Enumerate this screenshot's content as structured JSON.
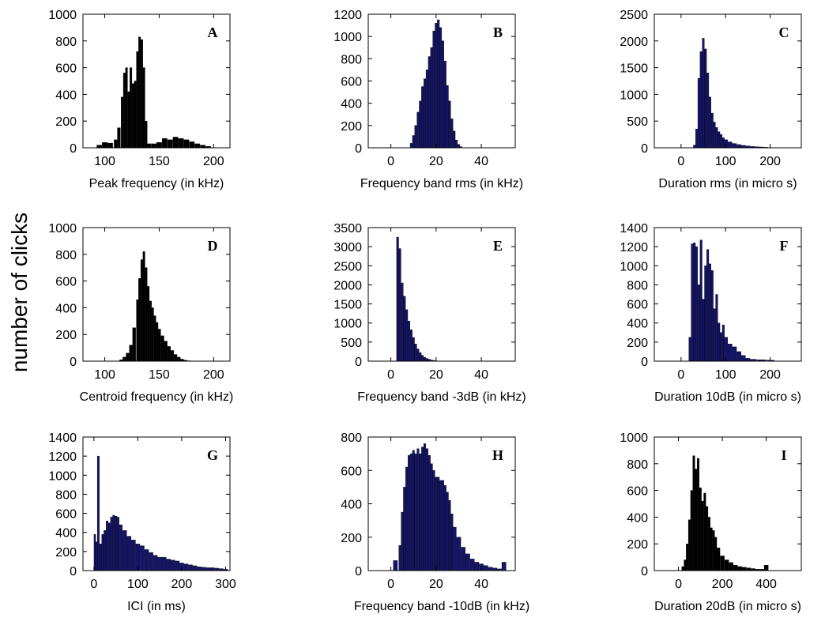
{
  "figure": {
    "ylabel": "number of clicks"
  },
  "colors": {
    "dark": "#000000",
    "navy": "#14146a",
    "axis": "#000000"
  },
  "chart_data": [
    {
      "type": "bar",
      "letter": "A",
      "xlabel": "Peak frequency (in kHz)",
      "ylabel": "",
      "xlim": [
        80,
        215
      ],
      "ylim": [
        0,
        1000
      ],
      "xticks": [
        100,
        150,
        200
      ],
      "yticks": [
        0,
        200,
        400,
        600,
        800,
        1000
      ],
      "color": "dark",
      "x": [
        95,
        100,
        105,
        110,
        113,
        116,
        118,
        120,
        122,
        124,
        126,
        128,
        130,
        132,
        134,
        136,
        138,
        140,
        145,
        150,
        155,
        160,
        165,
        170,
        175,
        180,
        185,
        190,
        195,
        200
      ],
      "values": [
        20,
        40,
        35,
        60,
        150,
        380,
        560,
        600,
        420,
        600,
        480,
        500,
        720,
        830,
        810,
        600,
        200,
        30,
        30,
        40,
        70,
        60,
        80,
        70,
        60,
        45,
        30,
        20,
        10,
        0
      ]
    },
    {
      "type": "bar",
      "letter": "B",
      "xlabel": "Frequency band rms (in kHz)",
      "ylabel": "",
      "xlim": [
        -10,
        55
      ],
      "ylim": [
        0,
        1200
      ],
      "xticks": [
        0,
        20,
        40
      ],
      "yticks": [
        0,
        200,
        400,
        600,
        800,
        1000,
        1200
      ],
      "color": "navy",
      "x": [
        9,
        10,
        11,
        12,
        13,
        14,
        15,
        16,
        17,
        18,
        19,
        20,
        21,
        22,
        23,
        24,
        25,
        26,
        27,
        28,
        29,
        30,
        31
      ],
      "values": [
        40,
        110,
        200,
        320,
        420,
        550,
        620,
        700,
        820,
        900,
        1050,
        1120,
        1150,
        1080,
        960,
        780,
        560,
        420,
        260,
        150,
        70,
        30,
        10
      ]
    },
    {
      "type": "bar",
      "letter": "C",
      "xlabel": "Duration rms (in micro s)",
      "ylabel": "",
      "xlim": [
        -60,
        270
      ],
      "ylim": [
        0,
        2500
      ],
      "xticks": [
        0,
        100,
        200
      ],
      "yticks": [
        0,
        500,
        1000,
        1500,
        2000,
        2500
      ],
      "color": "navy",
      "x": [
        30,
        35,
        40,
        45,
        50,
        55,
        60,
        65,
        70,
        75,
        80,
        85,
        90,
        95,
        100,
        110,
        120,
        130,
        140,
        150,
        160,
        170,
        180,
        190,
        200
      ],
      "values": [
        50,
        350,
        1300,
        1800,
        2050,
        1850,
        1400,
        950,
        650,
        480,
        380,
        300,
        250,
        190,
        150,
        110,
        80,
        60,
        45,
        35,
        25,
        20,
        15,
        10,
        5
      ]
    },
    {
      "type": "bar",
      "letter": "D",
      "xlabel": "Centroid frequency (in kHz)",
      "ylabel": "",
      "xlim": [
        80,
        215
      ],
      "ylim": [
        0,
        1000
      ],
      "xticks": [
        100,
        150,
        200
      ],
      "yticks": [
        0,
        200,
        400,
        600,
        800,
        1000
      ],
      "color": "dark",
      "x": [
        115,
        118,
        121,
        124,
        127,
        130,
        132,
        134,
        136,
        138,
        140,
        142,
        144,
        146,
        148,
        150,
        153,
        156,
        159,
        162,
        165,
        168,
        171,
        174,
        177
      ],
      "values": [
        10,
        30,
        60,
        120,
        250,
        460,
        620,
        760,
        820,
        700,
        560,
        450,
        400,
        340,
        290,
        240,
        190,
        150,
        110,
        80,
        50,
        30,
        15,
        8,
        3
      ]
    },
    {
      "type": "bar",
      "letter": "E",
      "xlabel": "Frequency band -3dB (in kHz)",
      "ylabel": "",
      "xlim": [
        -10,
        55
      ],
      "ylim": [
        0,
        3500
      ],
      "xticks": [
        0,
        20,
        40
      ],
      "yticks": [
        0,
        500,
        1000,
        1500,
        2000,
        2500,
        3000,
        3500
      ],
      "color": "navy",
      "x": [
        3,
        4,
        5,
        6,
        7,
        8,
        9,
        10,
        11,
        12,
        13,
        14,
        15,
        16,
        17,
        18,
        19,
        20
      ],
      "values": [
        3250,
        2950,
        2050,
        1700,
        1350,
        1050,
        820,
        620,
        450,
        320,
        220,
        150,
        100,
        70,
        50,
        30,
        20,
        10
      ]
    },
    {
      "type": "bar",
      "letter": "F",
      "xlabel": "Duration 10dB (in micro s)",
      "ylabel": "",
      "xlim": [
        -60,
        270
      ],
      "ylim": [
        0,
        1400
      ],
      "xticks": [
        0,
        100,
        200
      ],
      "yticks": [
        0,
        200,
        400,
        600,
        800,
        1000,
        1200,
        1400
      ],
      "color": "navy",
      "x": [
        20,
        25,
        30,
        35,
        40,
        45,
        50,
        55,
        60,
        65,
        70,
        75,
        80,
        85,
        90,
        95,
        100,
        110,
        120,
        130,
        140,
        150,
        160,
        180,
        200
      ],
      "values": [
        250,
        1230,
        1240,
        1200,
        800,
        1270,
        650,
        1000,
        1170,
        1020,
        950,
        550,
        700,
        400,
        300,
        380,
        250,
        180,
        150,
        100,
        60,
        30,
        20,
        15,
        10
      ]
    },
    {
      "type": "bar",
      "letter": "G",
      "xlabel": "ICI (in ms)",
      "ylabel": "",
      "xlim": [
        -25,
        310
      ],
      "ylim": [
        0,
        1400
      ],
      "xticks": [
        0,
        100,
        200,
        300
      ],
      "yticks": [
        0,
        200,
        400,
        600,
        800,
        1000,
        1200,
        1400
      ],
      "color": "navy",
      "x": [
        2,
        6,
        10,
        15,
        20,
        25,
        30,
        35,
        40,
        45,
        50,
        55,
        60,
        70,
        80,
        90,
        100,
        110,
        120,
        130,
        140,
        150,
        160,
        170,
        180,
        190,
        200,
        210,
        220,
        230,
        240,
        250,
        260,
        270,
        280,
        290,
        300
      ],
      "values": [
        380,
        300,
        1200,
        280,
        380,
        420,
        520,
        500,
        560,
        580,
        570,
        560,
        480,
        420,
        360,
        320,
        280,
        260,
        220,
        190,
        160,
        140,
        140,
        120,
        110,
        100,
        80,
        70,
        60,
        50,
        40,
        35,
        30,
        30,
        25,
        20,
        15
      ]
    },
    {
      "type": "bar",
      "letter": "H",
      "xlabel": "Frequency band -10dB (in kHz)",
      "ylabel": "",
      "xlim": [
        -10,
        55
      ],
      "ylim": [
        0,
        800
      ],
      "xticks": [
        0,
        20,
        40
      ],
      "yticks": [
        0,
        200,
        400,
        600,
        800
      ],
      "color": "navy",
      "x": [
        2,
        4,
        5,
        6,
        7,
        8,
        9,
        10,
        11,
        12,
        13,
        14,
        15,
        16,
        17,
        18,
        19,
        20,
        21,
        22,
        23,
        24,
        25,
        26,
        27,
        28,
        30,
        32,
        34,
        36,
        38,
        40,
        42,
        44,
        46,
        48,
        50
      ],
      "values": [
        60,
        150,
        350,
        500,
        620,
        690,
        700,
        720,
        700,
        730,
        700,
        740,
        760,
        730,
        690,
        640,
        600,
        560,
        560,
        540,
        540,
        510,
        470,
        420,
        340,
        260,
        200,
        140,
        100,
        70,
        50,
        40,
        30,
        20,
        15,
        10,
        50
      ]
    },
    {
      "type": "bar",
      "letter": "I",
      "xlabel": "Duration 20dB (in micro s)",
      "ylabel": "",
      "xlim": [
        -110,
        560
      ],
      "ylim": [
        0,
        1000
      ],
      "xticks": [
        0,
        200,
        400
      ],
      "yticks": [
        0,
        200,
        400,
        600,
        800,
        1000
      ],
      "color": "dark",
      "x": [
        20,
        30,
        40,
        50,
        60,
        70,
        80,
        90,
        100,
        110,
        120,
        130,
        140,
        150,
        160,
        170,
        180,
        200,
        220,
        240,
        260,
        280,
        300,
        320,
        340,
        360,
        380,
        400
      ],
      "values": [
        30,
        80,
        200,
        380,
        600,
        860,
        760,
        840,
        620,
        520,
        580,
        480,
        400,
        320,
        300,
        250,
        170,
        110,
        80,
        60,
        40,
        30,
        25,
        20,
        15,
        10,
        10,
        40
      ]
    }
  ]
}
